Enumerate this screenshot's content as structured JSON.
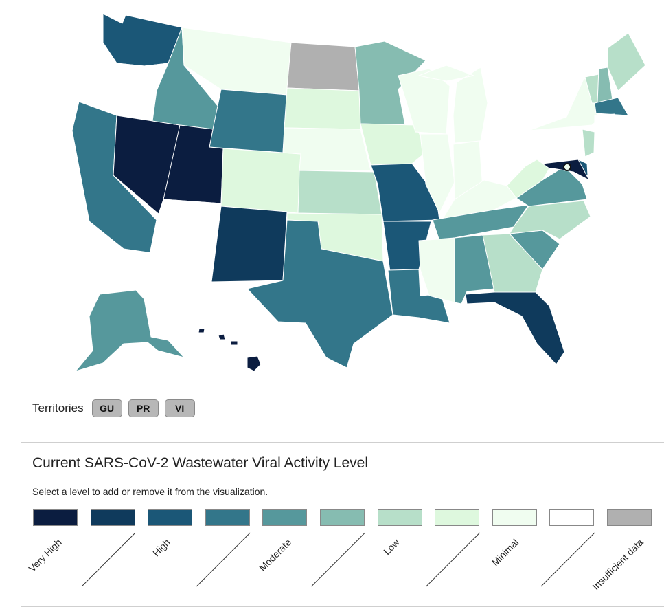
{
  "map": {
    "states": [
      {
        "id": "WA",
        "level": "High"
      },
      {
        "id": "OR",
        "level": "Insufficient data"
      },
      {
        "id": "CA",
        "level": "Moderate"
      },
      {
        "id": "NV",
        "level": "Very High"
      },
      {
        "id": "ID",
        "level": "Moderate"
      },
      {
        "id": "MT",
        "level": "Minimal"
      },
      {
        "id": "WY",
        "level": "Moderate"
      },
      {
        "id": "UT",
        "level": "Very High"
      },
      {
        "id": "AZ",
        "level": "No data"
      },
      {
        "id": "CO",
        "level": "Minimal"
      },
      {
        "id": "NM",
        "level": "Very High"
      },
      {
        "id": "ND",
        "level": "Insufficient data"
      },
      {
        "id": "SD",
        "level": "Minimal"
      },
      {
        "id": "NE",
        "level": "Minimal"
      },
      {
        "id": "KS",
        "level": "Low"
      },
      {
        "id": "OK",
        "level": "Minimal"
      },
      {
        "id": "TX",
        "level": "Moderate"
      },
      {
        "id": "MN",
        "level": "Moderate"
      },
      {
        "id": "IA",
        "level": "Minimal"
      },
      {
        "id": "MO",
        "level": "High"
      },
      {
        "id": "AR",
        "level": "High"
      },
      {
        "id": "LA",
        "level": "Moderate"
      },
      {
        "id": "WI",
        "level": "Minimal"
      },
      {
        "id": "IL",
        "level": "Minimal"
      },
      {
        "id": "MI",
        "level": "Minimal"
      },
      {
        "id": "IN",
        "level": "Minimal"
      },
      {
        "id": "OH",
        "level": "No data"
      },
      {
        "id": "KY",
        "level": "Minimal"
      },
      {
        "id": "TN",
        "level": "Moderate"
      },
      {
        "id": "MS",
        "level": "Minimal"
      },
      {
        "id": "AL",
        "level": "Moderate"
      },
      {
        "id": "GA",
        "level": "Low"
      },
      {
        "id": "FL",
        "level": "High"
      },
      {
        "id": "SC",
        "level": "Moderate"
      },
      {
        "id": "NC",
        "level": "Low"
      },
      {
        "id": "VA",
        "level": "Moderate"
      },
      {
        "id": "WV",
        "level": "Minimal"
      },
      {
        "id": "PA",
        "level": "No data"
      },
      {
        "id": "NY",
        "level": "Minimal"
      },
      {
        "id": "VT",
        "level": "Low"
      },
      {
        "id": "NH",
        "level": "Low"
      },
      {
        "id": "ME",
        "level": "Low"
      },
      {
        "id": "MA",
        "level": "High"
      },
      {
        "id": "CT",
        "level": "No data"
      },
      {
        "id": "NJ",
        "level": "Low"
      },
      {
        "id": "DE",
        "level": "High"
      },
      {
        "id": "MD",
        "level": "Very High"
      },
      {
        "id": "DC",
        "level": "Minimal"
      },
      {
        "id": "AK",
        "level": "Moderate"
      },
      {
        "id": "HI",
        "level": "Very High"
      }
    ]
  },
  "territories": {
    "label": "Territories",
    "items": [
      {
        "code": "GU",
        "level": "Insufficient data"
      },
      {
        "code": "PR",
        "level": "Insufficient data"
      },
      {
        "code": "VI",
        "level": "Insufficient data"
      }
    ]
  },
  "legend": {
    "title": "Current SARS-CoV-2 Wastewater Viral Activity Level",
    "subtitle": "Select a level to add or remove it from the visualization.",
    "levels": [
      {
        "label": "Very High",
        "color": "#0b1d40"
      },
      {
        "label": "",
        "color": "#0f3a5c"
      },
      {
        "label": "High",
        "color": "#1b5777"
      },
      {
        "label": "",
        "color": "#33768a"
      },
      {
        "label": "Moderate",
        "color": "#56989c"
      },
      {
        "label": "",
        "color": "#86bcb1"
      },
      {
        "label": "Low",
        "color": "#b7dfc9"
      },
      {
        "label": "",
        "color": "#def8de"
      },
      {
        "label": "Minimal",
        "color": "#f0fdf0"
      },
      {
        "label": "",
        "color": "#ffffff"
      },
      {
        "label": "Insufficient data",
        "color": "#b0b0b0"
      }
    ]
  }
}
